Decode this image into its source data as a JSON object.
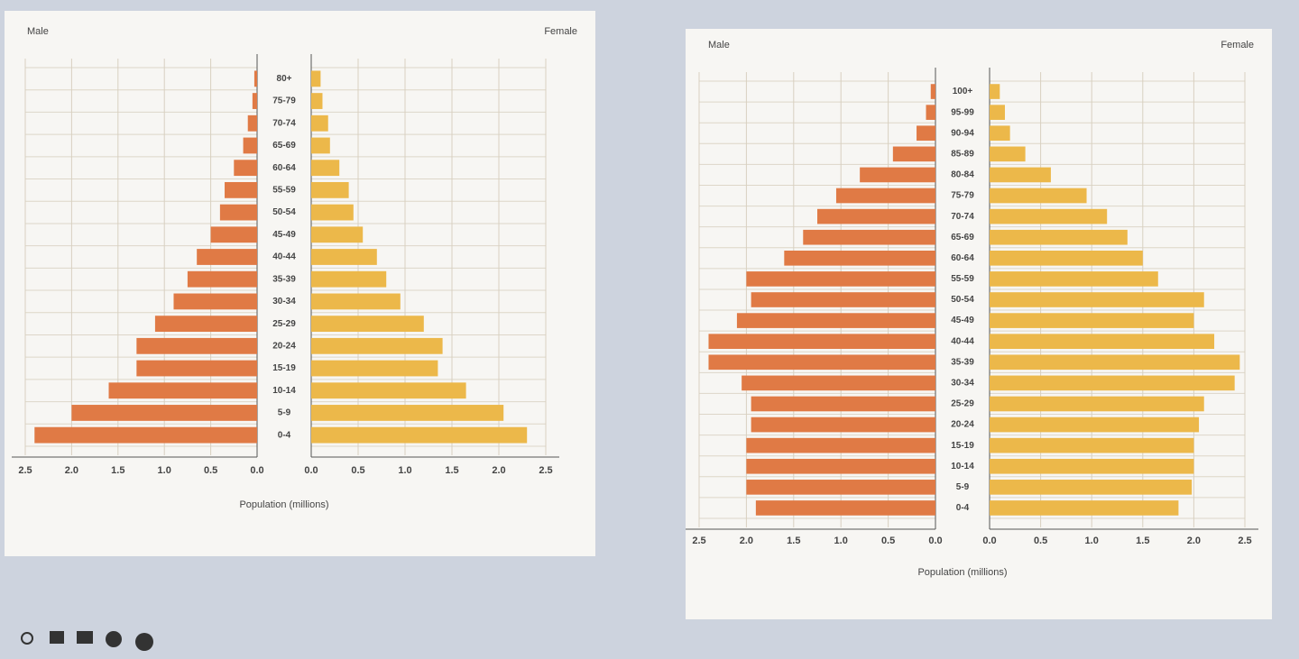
{
  "chart_data": [
    {
      "type": "pyramid",
      "xlabel": "Population (millions)",
      "categories": [
        "0-4",
        "5-9",
        "10-14",
        "15-19",
        "20-24",
        "25-29",
        "30-34",
        "35-39",
        "40-44",
        "45-49",
        "50-54",
        "55-59",
        "60-64",
        "65-69",
        "70-74",
        "75-79",
        "80+"
      ],
      "series": [
        {
          "name": "Male",
          "color": "#e07a45",
          "values": [
            2.4,
            2.0,
            1.6,
            1.3,
            1.3,
            1.1,
            0.9,
            0.75,
            0.65,
            0.5,
            0.4,
            0.35,
            0.25,
            0.15,
            0.1,
            0.05,
            0.03
          ]
        },
        {
          "name": "Female",
          "color": "#ecb84a",
          "values": [
            2.3,
            2.05,
            1.65,
            1.35,
            1.4,
            1.2,
            0.95,
            0.8,
            0.7,
            0.55,
            0.45,
            0.4,
            0.3,
            0.2,
            0.18,
            0.12,
            0.1
          ]
        }
      ],
      "xlim": [
        0,
        2.5
      ],
      "xticks": [
        {
          "value": 0,
          "label": "0.0"
        },
        0.5,
        {
          "value": 1,
          "label": "1.0"
        },
        1.5,
        {
          "value": 2,
          "label": "2.0"
        },
        2.5
      ],
      "grid": true
    },
    {
      "type": "pyramid",
      "xlabel": "Population (millions)",
      "categories": [
        "0-4",
        "5-9",
        "10-14",
        "15-19",
        "20-24",
        "25-29",
        "30-34",
        "35-39",
        "40-44",
        "45-49",
        "50-54",
        "55-59",
        "60-64",
        "65-69",
        "70-74",
        "75-79",
        "80-84",
        "85-89",
        "90-94",
        "95-99",
        "100+"
      ],
      "series": [
        {
          "name": "Male",
          "color": "#e07a45",
          "values": [
            1.9,
            2.0,
            2.0,
            2.0,
            1.95,
            1.95,
            2.05,
            2.4,
            2.4,
            2.1,
            1.95,
            2.0,
            1.6,
            1.4,
            1.25,
            1.05,
            0.8,
            0.45,
            0.2,
            0.1,
            0.05
          ]
        },
        {
          "name": "Female",
          "color": "#ecb84a",
          "values": [
            1.85,
            1.98,
            2.0,
            2.0,
            2.05,
            2.1,
            2.4,
            2.45,
            2.2,
            2.0,
            2.1,
            1.65,
            1.5,
            1.35,
            1.15,
            0.95,
            0.6,
            0.35,
            0.2,
            0.15,
            0.1
          ]
        }
      ],
      "xlim": [
        0,
        2.5
      ],
      "xticks": [
        {
          "value": 0,
          "label": "0.0"
        },
        0.5,
        {
          "value": 1,
          "label": "1.0"
        },
        1.5,
        {
          "value": 2,
          "label": "2.0"
        },
        2.5
      ],
      "grid": true
    }
  ]
}
